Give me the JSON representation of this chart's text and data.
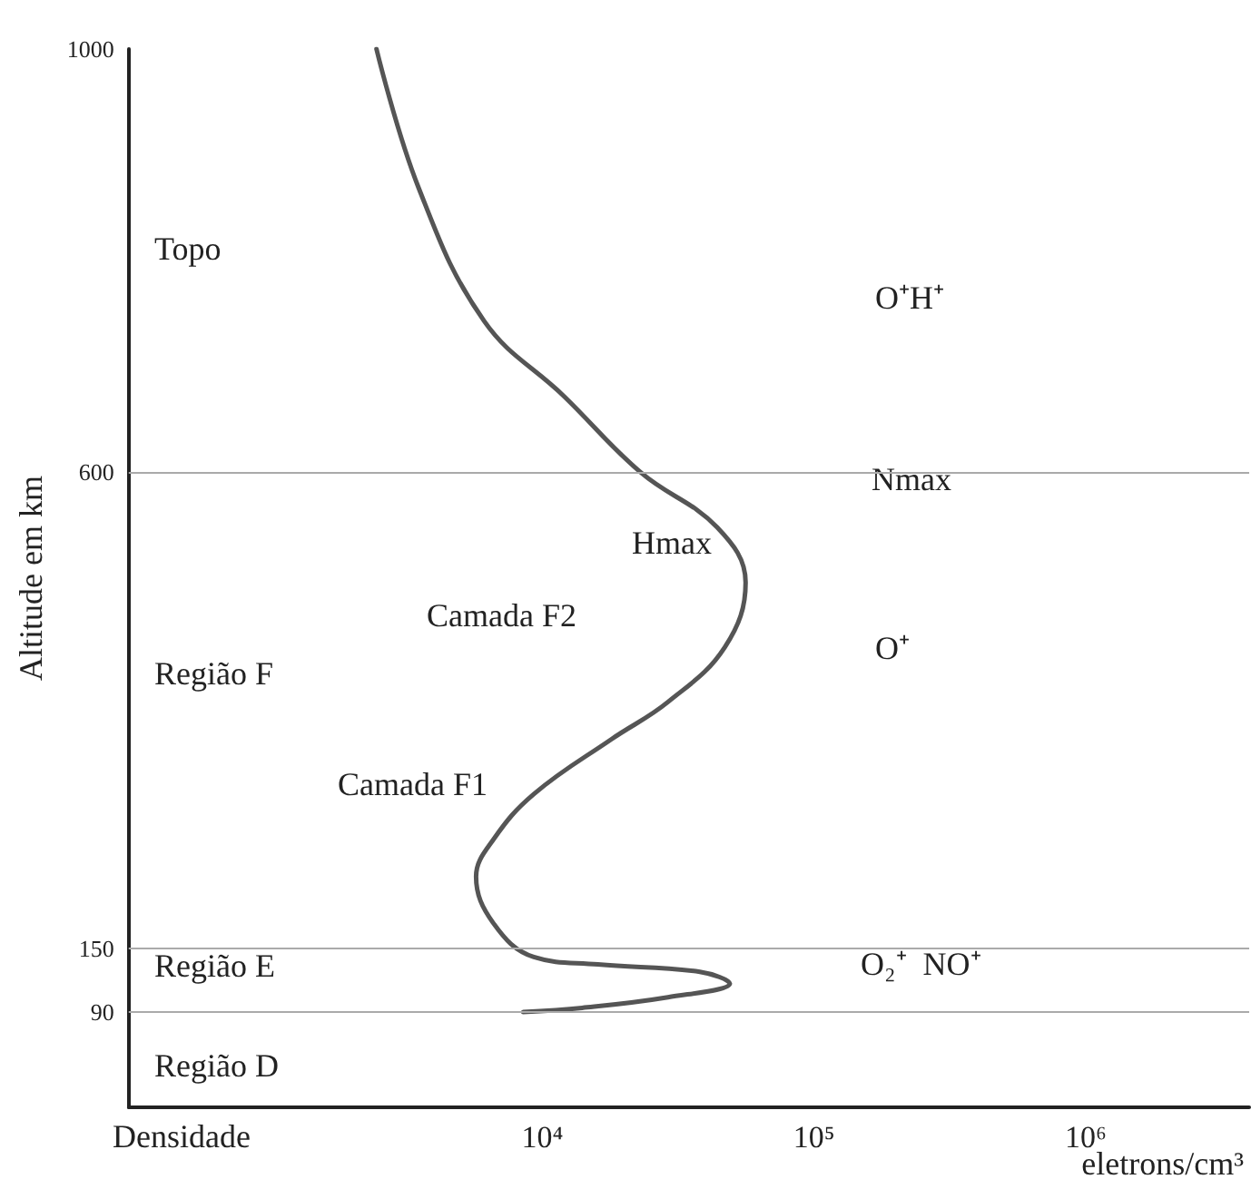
{
  "chart_data": {
    "type": "line",
    "ylabel": "Altitude em km",
    "xlabel": "eletrons/cm³",
    "log": "x",
    "xlim": [
      300,
      4000000
    ],
    "xticks": [
      {
        "value": 10000,
        "label": "10⁴"
      },
      {
        "value": 100000,
        "label": "10⁵"
      },
      {
        "value": 1000000,
        "label": "10⁶"
      }
    ],
    "ylim": [
      0,
      1000
    ],
    "yticks": [
      90,
      150,
      600,
      1000
    ],
    "grid": false,
    "marker": "none",
    "line_style": "solid",
    "series": [
      {
        "color": "#555555",
        "x": [
          2450,
          3500,
          6100,
          12000,
          23000,
          44000,
          56000,
          47000,
          29000,
          18000,
          9300,
          6600,
          5700,
          6600,
          9300,
          16000,
          38000,
          49000,
          29000,
          14000,
          8500
        ],
        "values": [
          1000,
          869,
          743,
          672,
          600,
          548,
          496,
          435,
          383,
          348,
          296,
          253,
          218,
          174,
          142,
          135,
          128,
          117,
          104,
          94,
          90
        ]
      }
    ],
    "ref_lines": [
      {
        "axis": "y",
        "value": 600,
        "color": "#aaaaaa"
      },
      {
        "axis": "y",
        "value": 150,
        "color": "#aaaaaa"
      },
      {
        "axis": "y",
        "value": 90,
        "color": "#aaaaaa"
      }
    ],
    "annotations": [
      "Densidade",
      "Topo",
      "O⁺H⁺",
      "Nmax",
      "Hmax",
      "Camada F2",
      "O⁺",
      "Região F",
      "Camada F1",
      "Região E",
      "O₂⁺  NO⁺",
      "Região D"
    ]
  }
}
